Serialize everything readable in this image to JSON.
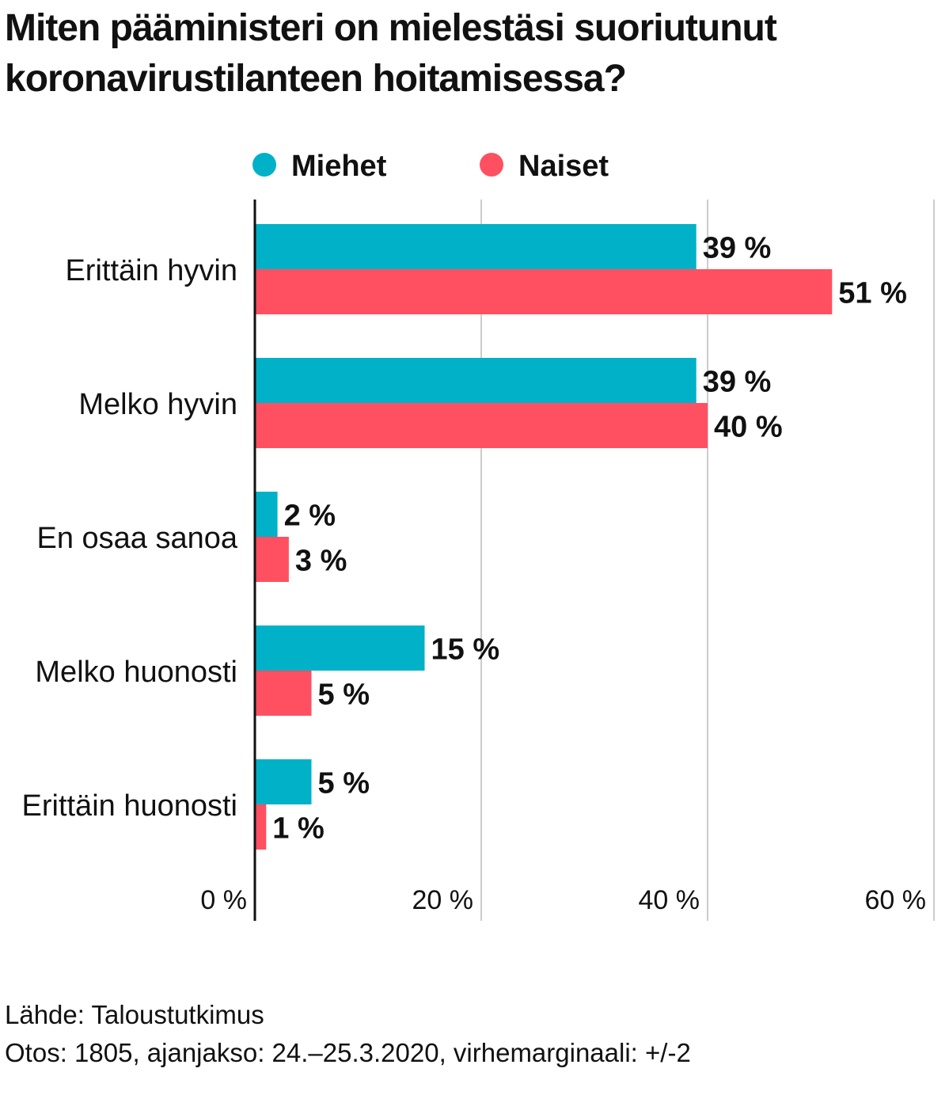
{
  "title_lines": [
    "Miten pääministeri on mielestäsi suoriutunut",
    "koronavirustilanteen hoitamisessa?"
  ],
  "footer": {
    "source": "Lähde: Taloustutkimus",
    "sample": "Otos: 1805, ajanjakso: 24.–25.3.2020, virhemarginaali: +/-2"
  },
  "colors": {
    "men": "#00b1c8",
    "women": "#ff5061",
    "grid": "#cccccc",
    "axis": "#111111"
  },
  "chart_data": {
    "type": "bar",
    "orientation": "horizontal",
    "title": "Miten pääministeri on mielestäsi suoriutunut koronavirustilanteen hoitamisessa?",
    "categories": [
      "Erittäin hyvin",
      "Melko hyvin",
      "En osaa sanoa",
      "Melko huonosti",
      "Erittäin huonosti"
    ],
    "series": [
      {
        "name": "Miehet",
        "values": [
          39,
          39,
          2,
          15,
          5
        ],
        "labels": [
          "39 %",
          "39 %",
          "2 %",
          "15 %",
          "5 %"
        ]
      },
      {
        "name": "Naiset",
        "values": [
          51,
          40,
          3,
          5,
          1
        ],
        "labels": [
          "51 %",
          "40 %",
          "3 %",
          "5 %",
          "1 %"
        ]
      }
    ],
    "xlim": [
      0,
      60
    ],
    "xticks": [
      0,
      20,
      40,
      60
    ],
    "xtick_labels": [
      "0 %",
      "20 %",
      "40 %",
      "60 %"
    ],
    "grid": true,
    "legend_position": "top"
  }
}
